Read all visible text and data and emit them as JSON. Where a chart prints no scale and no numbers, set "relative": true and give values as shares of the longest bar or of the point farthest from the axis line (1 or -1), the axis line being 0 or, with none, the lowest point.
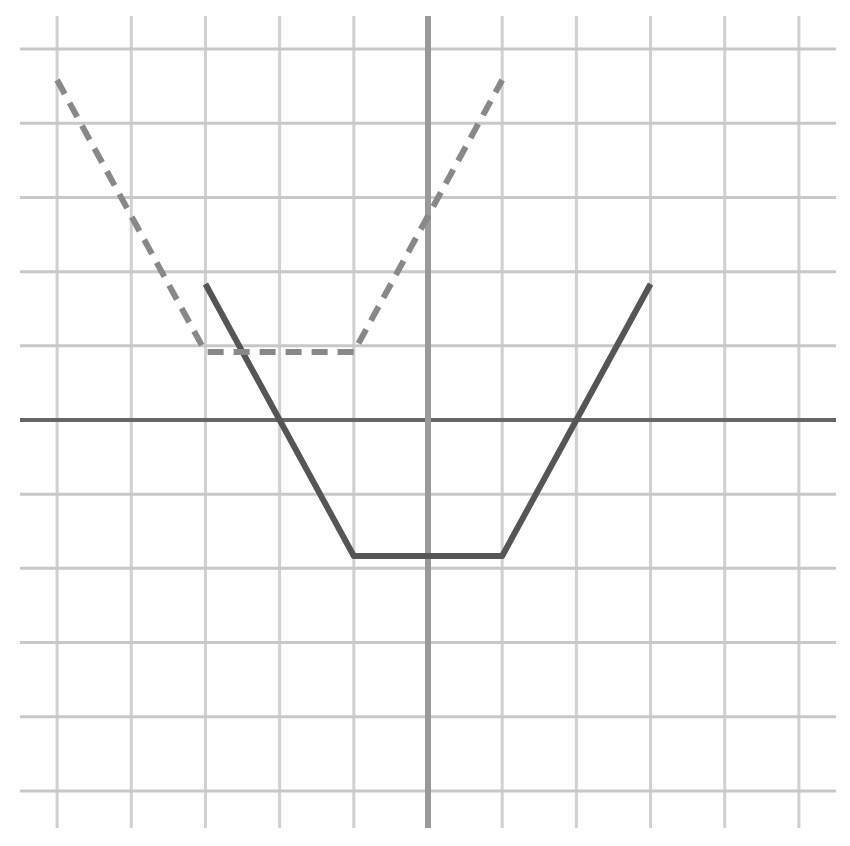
{
  "chart_data": {
    "type": "line",
    "relative": true,
    "grid": true,
    "categories": [
      null,
      null,
      null,
      null,
      null,
      null,
      null,
      null,
      null,
      null,
      null
    ],
    "series": [
      {
        "color": "#555555",
        "line_style": "solid",
        "values": [
          null,
          null,
          0.4,
          0,
          -0.4,
          -0.4,
          -0.4,
          0,
          0.4,
          null,
          null
        ]
      },
      {
        "color": "#888888",
        "line_style": "dashed",
        "values": [
          1,
          0.6,
          0.2,
          0.2,
          0.2,
          0.6,
          1,
          null,
          null,
          null,
          null
        ]
      }
    ]
  }
}
